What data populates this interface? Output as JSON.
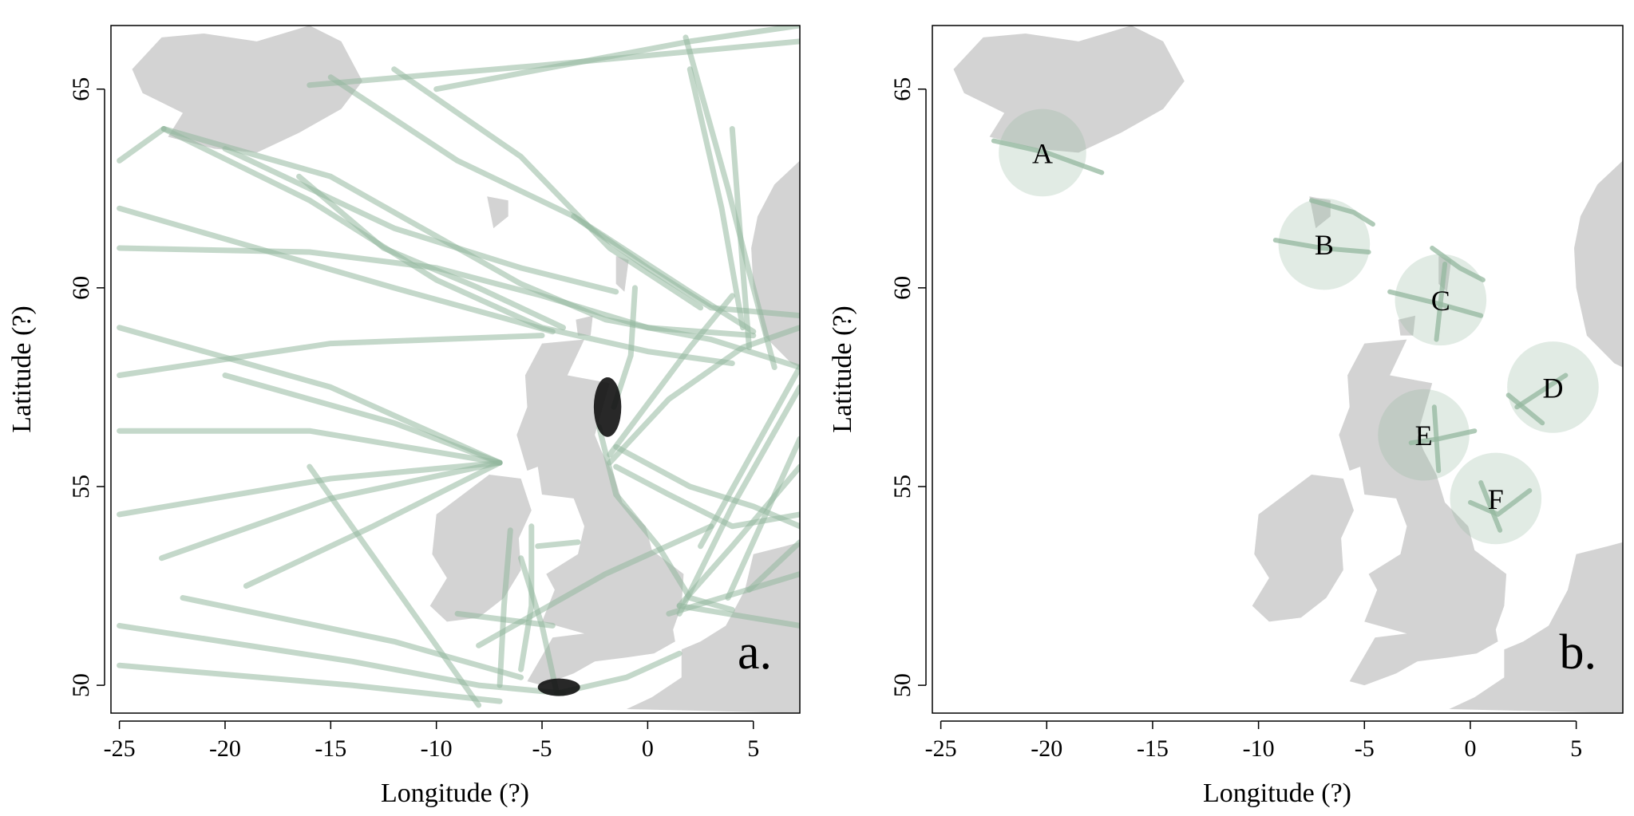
{
  "colors": {
    "land": "#d3d3d3",
    "track": "#94b89f",
    "sample": "#111111",
    "frame": "#000000"
  },
  "axes": {
    "xlabel": "Longitude (?)",
    "ylabel": "Latitude (?)",
    "xlim": [
      -25.4,
      7.2
    ],
    "ylim": [
      49.3,
      66.6
    ],
    "xticks": [
      -25,
      -20,
      -15,
      -10,
      -5,
      0,
      5
    ],
    "yticks": [
      50,
      55,
      60,
      65
    ]
  },
  "panels": [
    {
      "id": "a",
      "label": "a.",
      "tracks": [
        [
          [
            -22.9,
            64.0
          ],
          [
            -15,
            62.8
          ],
          [
            -10,
            61.3
          ],
          [
            -6,
            60.1
          ],
          [
            -2,
            59.2
          ],
          [
            3,
            58.7
          ],
          [
            7.2,
            58.0
          ]
        ],
        [
          [
            -22.9,
            64.0
          ],
          [
            -16,
            62.2
          ],
          [
            -10,
            60.2
          ],
          [
            -5,
            59.0
          ],
          [
            0,
            58.4
          ],
          [
            4,
            58.1
          ]
        ],
        [
          [
            -25,
            61.0
          ],
          [
            -16,
            60.9
          ],
          [
            -10,
            60.5
          ],
          [
            -5,
            59.8
          ],
          [
            0,
            59.0
          ],
          [
            5,
            58.8
          ]
        ],
        [
          [
            -25,
            63.2
          ],
          [
            -22.9,
            64.0
          ]
        ],
        [
          [
            -25,
            56.4
          ],
          [
            -16,
            56.4
          ],
          [
            -7,
            55.6
          ]
        ],
        [
          [
            -25,
            54.3
          ],
          [
            -15,
            55.2
          ],
          [
            -7,
            55.6
          ]
        ],
        [
          [
            -20,
            57.8
          ],
          [
            -12,
            56.6
          ],
          [
            -7,
            55.6
          ]
        ],
        [
          [
            -23,
            53.2
          ],
          [
            -15,
            54.7
          ],
          [
            -7,
            55.6
          ]
        ],
        [
          [
            -19,
            52.5
          ],
          [
            -13,
            54.0
          ],
          [
            -7,
            55.6
          ]
        ],
        [
          [
            -25,
            59.0
          ],
          [
            -15,
            57.5
          ],
          [
            -7,
            55.6
          ]
        ],
        [
          [
            -16,
            55.5
          ],
          [
            -12,
            52.5
          ],
          [
            -8,
            49.5
          ]
        ],
        [
          [
            -25,
            51.5
          ],
          [
            -14,
            50.6
          ],
          [
            -8,
            50.0
          ],
          [
            -4,
            49.8
          ]
        ],
        [
          [
            -25,
            50.5
          ],
          [
            -14,
            50.0
          ],
          [
            -7,
            49.6
          ]
        ],
        [
          [
            -22,
            52.2
          ],
          [
            -12,
            51.1
          ],
          [
            -6,
            50.2
          ]
        ],
        [
          [
            -6,
            53.2
          ],
          [
            -5,
            51.5
          ],
          [
            -4.3,
            49.8
          ]
        ],
        [
          [
            -5.5,
            54.0
          ],
          [
            -5.5,
            52.0
          ],
          [
            -6,
            50.4
          ]
        ],
        [
          [
            -6.5,
            53.9
          ],
          [
            -6.8,
            52.0
          ],
          [
            -7,
            50.0
          ]
        ],
        [
          [
            -5.2,
            53.5
          ],
          [
            -3.3,
            53.6
          ]
        ],
        [
          [
            -9,
            51.8
          ],
          [
            -4.5,
            51.5
          ]
        ],
        [
          [
            -4.3,
            49.8
          ],
          [
            -1,
            50.2
          ],
          [
            1.5,
            50.8
          ]
        ],
        [
          [
            -2.3,
            56.5
          ],
          [
            -1.5,
            54.8
          ],
          [
            0.5,
            53.5
          ],
          [
            2,
            52.2
          ],
          [
            4,
            51.9
          ]
        ],
        [
          [
            -1.5,
            56.0
          ],
          [
            2,
            55.0
          ],
          [
            5,
            54.5
          ],
          [
            7.2,
            54.0
          ]
        ],
        [
          [
            1.5,
            52.0
          ],
          [
            4,
            53.5
          ],
          [
            7.2,
            55.5
          ]
        ],
        [
          [
            1.5,
            51.8
          ],
          [
            4,
            54.5
          ],
          [
            7.2,
            57.5
          ]
        ],
        [
          [
            -1.8,
            55.6
          ],
          [
            1,
            57.2
          ],
          [
            4.5,
            58.5
          ],
          [
            7.2,
            59.0
          ]
        ],
        [
          [
            -1.8,
            55.8
          ],
          [
            2,
            58.5
          ],
          [
            4,
            59.8
          ]
        ],
        [
          [
            -1.6,
            57.0
          ],
          [
            -0.8,
            58.3
          ],
          [
            -0.6,
            60.0
          ]
        ],
        [
          [
            2.5,
            53.5
          ],
          [
            7.2,
            58.0
          ]
        ],
        [
          [
            1,
            51.8
          ],
          [
            7.2,
            52.8
          ]
        ],
        [
          [
            1.5,
            52.0
          ],
          [
            7.2,
            51.5
          ]
        ],
        [
          [
            -1.5,
            55.5
          ],
          [
            1,
            54.8
          ],
          [
            4,
            54.0
          ],
          [
            7.2,
            54.3
          ]
        ],
        [
          [
            -3.5,
            61.8
          ],
          [
            0,
            60.5
          ],
          [
            3,
            59.5
          ],
          [
            7.2,
            59.3
          ]
        ],
        [
          [
            3.8,
            52.2
          ],
          [
            7.2,
            56.2
          ]
        ],
        [
          [
            4.8,
            52.4
          ],
          [
            7.2,
            53.6
          ]
        ],
        [
          [
            -15,
            65.3
          ],
          [
            -9,
            63.2
          ],
          [
            -3.5,
            61.8
          ],
          [
            2,
            59.9
          ],
          [
            5,
            58.9
          ]
        ],
        [
          [
            -16.5,
            62.8
          ],
          [
            -12.5,
            61.0
          ],
          [
            -8,
            60.0
          ],
          [
            -4,
            59.0
          ]
        ],
        [
          [
            -20,
            63.5
          ],
          [
            -16,
            62.5
          ],
          [
            -12,
            61.5
          ],
          [
            -6,
            60.5
          ],
          [
            -1.5,
            59.9
          ]
        ],
        [
          [
            -16,
            65.1
          ],
          [
            -5,
            65.6
          ],
          [
            7.2,
            66.2
          ]
        ],
        [
          [
            -10,
            65.0
          ],
          [
            2,
            66.2
          ],
          [
            7.2,
            66.6
          ]
        ],
        [
          [
            1.8,
            66.3
          ],
          [
            3.8,
            62.5
          ],
          [
            4.8,
            60.4
          ],
          [
            6,
            58.0
          ]
        ],
        [
          [
            2.0,
            65.5
          ],
          [
            3.5,
            62.0
          ],
          [
            4.5,
            59.0
          ]
        ],
        [
          [
            4.0,
            64.0
          ],
          [
            4.5,
            60.5
          ],
          [
            4.8,
            58.5
          ]
        ],
        [
          [
            -12,
            65.5
          ],
          [
            -6,
            63.3
          ],
          [
            -1.8,
            61.0
          ],
          [
            2.5,
            59.5
          ]
        ],
        [
          [
            -25,
            62.0
          ],
          [
            -12,
            60.0
          ],
          [
            -4.5,
            58.9
          ]
        ],
        [
          [
            -25,
            57.8
          ],
          [
            -15,
            58.6
          ],
          [
            -5,
            58.8
          ]
        ],
        [
          [
            -8,
            51.0
          ],
          [
            -2,
            52.8
          ],
          [
            3,
            54.0
          ]
        ]
      ],
      "samples": [
        {
          "lon": -1.9,
          "lat": 57.0,
          "rlon": 0.65,
          "rlat": 0.75
        },
        {
          "lon": -4.2,
          "lat": 49.95,
          "rlon": 1.0,
          "rlat": 0.22
        }
      ],
      "circles": []
    },
    {
      "id": "b",
      "label": "b.",
      "tracks": [
        [
          [
            -22.5,
            63.7
          ],
          [
            -20,
            63.4
          ],
          [
            -17.4,
            62.9
          ]
        ],
        [
          [
            -9.2,
            61.2
          ],
          [
            -7,
            61.0
          ],
          [
            -4.8,
            60.9
          ]
        ],
        [
          [
            -7.5,
            62.2
          ],
          [
            -5.5,
            61.9
          ],
          [
            -4.6,
            61.6
          ]
        ],
        [
          [
            -3.8,
            59.9
          ],
          [
            -1.5,
            59.6
          ],
          [
            0.5,
            59.3
          ]
        ],
        [
          [
            -1.8,
            61.0
          ],
          [
            -0.5,
            60.5
          ],
          [
            0.6,
            60.2
          ]
        ],
        [
          [
            -1.2,
            60.6
          ],
          [
            -1.6,
            58.7
          ]
        ],
        [
          [
            2.2,
            57.0
          ],
          [
            4.5,
            57.8
          ]
        ],
        [
          [
            1.8,
            57.3
          ],
          [
            3.4,
            56.6
          ]
        ],
        [
          [
            -2.8,
            56.1
          ],
          [
            -1.5,
            56.2
          ],
          [
            0.2,
            56.4
          ]
        ],
        [
          [
            -1.7,
            57.0
          ],
          [
            -1.5,
            55.4
          ]
        ],
        [
          [
            0,
            54.6
          ],
          [
            1.3,
            54.3
          ],
          [
            2.8,
            54.9
          ]
        ],
        [
          [
            0.5,
            55.1
          ],
          [
            1.4,
            53.9
          ]
        ]
      ],
      "samples": [],
      "circles": [
        {
          "name": "A",
          "lon": -20.2,
          "lat": 63.4,
          "r_lat": 1.1
        },
        {
          "name": "B",
          "lon": -6.9,
          "lat": 61.1,
          "r_lat": 1.15
        },
        {
          "name": "C",
          "lon": -1.4,
          "lat": 59.7,
          "r_lat": 1.15
        },
        {
          "name": "D",
          "lon": 3.9,
          "lat": 57.5,
          "r_lat": 1.15
        },
        {
          "name": "E",
          "lon": -2.2,
          "lat": 56.3,
          "r_lat": 1.15
        },
        {
          "name": "F",
          "lon": 1.2,
          "lat": 54.7,
          "r_lat": 1.15
        }
      ]
    }
  ],
  "land": [
    {
      "name": "iceland",
      "coords": [
        [
          -24.4,
          65.5
        ],
        [
          -23.0,
          66.3
        ],
        [
          -21.0,
          66.4
        ],
        [
          -18.5,
          66.2
        ],
        [
          -16.0,
          66.6
        ],
        [
          -14.5,
          66.2
        ],
        [
          -13.5,
          65.2
        ],
        [
          -14.5,
          64.5
        ],
        [
          -16.5,
          63.9
        ],
        [
          -18.5,
          63.4
        ],
        [
          -20.5,
          63.5
        ],
        [
          -22.7,
          63.8
        ],
        [
          -22.0,
          64.4
        ],
        [
          -23.9,
          64.9
        ]
      ]
    },
    {
      "name": "faroe-islands",
      "coords": [
        [
          -7.6,
          62.3
        ],
        [
          -6.6,
          62.2
        ],
        [
          -6.6,
          61.8
        ],
        [
          -7.3,
          61.5
        ]
      ]
    },
    {
      "name": "shetland",
      "coords": [
        [
          -1.5,
          60.8
        ],
        [
          -0.9,
          60.7
        ],
        [
          -1.1,
          59.9
        ],
        [
          -1.5,
          60.1
        ]
      ]
    },
    {
      "name": "orkney",
      "coords": [
        [
          -3.4,
          59.2
        ],
        [
          -2.6,
          59.3
        ],
        [
          -2.7,
          58.8
        ],
        [
          -3.3,
          58.8
        ]
      ]
    },
    {
      "name": "great-britain",
      "coords": [
        [
          -5.0,
          58.6
        ],
        [
          -3.0,
          58.7
        ],
        [
          -3.8,
          57.8
        ],
        [
          -1.8,
          57.6
        ],
        [
          -2.5,
          56.3
        ],
        [
          -2.2,
          55.9
        ],
        [
          -1.6,
          55.3
        ],
        [
          -1.2,
          54.6
        ],
        [
          -0.1,
          54.0
        ],
        [
          0.2,
          53.4
        ],
        [
          1.7,
          52.8
        ],
        [
          1.6,
          52.0
        ],
        [
          1.2,
          51.4
        ],
        [
          1.3,
          51.1
        ],
        [
          0.3,
          50.8
        ],
        [
          -1.0,
          50.7
        ],
        [
          -2.5,
          50.6
        ],
        [
          -3.5,
          50.3
        ],
        [
          -5.0,
          50.0
        ],
        [
          -5.7,
          50.1
        ],
        [
          -4.5,
          51.2
        ],
        [
          -3.0,
          51.3
        ],
        [
          -5.0,
          51.6
        ],
        [
          -4.4,
          52.4
        ],
        [
          -4.8,
          52.8
        ],
        [
          -3.3,
          53.3
        ],
        [
          -3.0,
          54.0
        ],
        [
          -3.5,
          54.7
        ],
        [
          -5.0,
          54.8
        ],
        [
          -5.2,
          55.5
        ],
        [
          -5.7,
          55.4
        ],
        [
          -6.2,
          56.3
        ],
        [
          -5.7,
          57.0
        ],
        [
          -5.8,
          57.8
        ]
      ]
    },
    {
      "name": "ireland",
      "coords": [
        [
          -6.0,
          55.2
        ],
        [
          -7.5,
          55.3
        ],
        [
          -8.5,
          54.9
        ],
        [
          -10.0,
          54.3
        ],
        [
          -10.2,
          53.3
        ],
        [
          -9.5,
          52.7
        ],
        [
          -10.3,
          52.0
        ],
        [
          -9.5,
          51.6
        ],
        [
          -8.0,
          51.7
        ],
        [
          -6.8,
          52.2
        ],
        [
          -6.0,
          52.9
        ],
        [
          -6.1,
          53.7
        ],
        [
          -5.5,
          54.4
        ]
      ]
    },
    {
      "name": "norway",
      "coords": [
        [
          7.2,
          58.0
        ],
        [
          6.8,
          58.1
        ],
        [
          5.5,
          58.8
        ],
        [
          5.0,
          60.0
        ],
        [
          4.9,
          61.0
        ],
        [
          5.2,
          61.8
        ],
        [
          6.0,
          62.6
        ],
        [
          7.2,
          63.2
        ]
      ]
    },
    {
      "name": "continent",
      "coords": [
        [
          7.2,
          53.6
        ],
        [
          6.5,
          53.5
        ],
        [
          5.0,
          53.3
        ],
        [
          4.6,
          52.4
        ],
        [
          3.7,
          51.5
        ],
        [
          2.5,
          51.1
        ],
        [
          1.6,
          50.9
        ],
        [
          1.6,
          50.2
        ],
        [
          0.2,
          49.7
        ],
        [
          -1.0,
          49.4
        ],
        [
          7.2,
          49.3
        ]
      ]
    },
    {
      "name": "denmark",
      "coords": [
        [
          7.2,
          57.2
        ],
        [
          8.0,
          57.6
        ],
        [
          8.0,
          55.4
        ],
        [
          7.2,
          55.4
        ]
      ]
    }
  ]
}
